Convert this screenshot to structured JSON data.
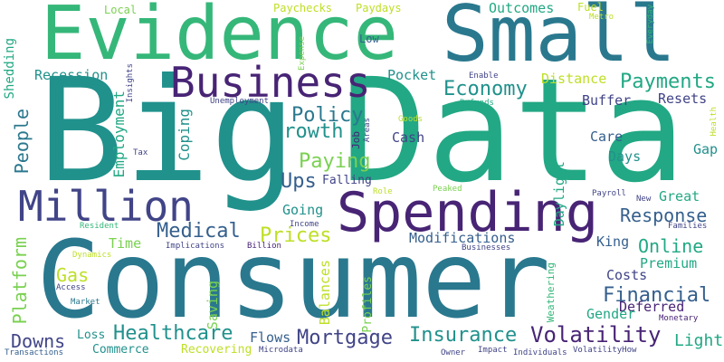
{
  "palette": {
    "yellow": "#bddf26",
    "light_green": "#7ad151",
    "green": "#35b779",
    "teal_green": "#22a884",
    "teal": "#21918c",
    "blue_teal": "#2a788e",
    "blue": "#355f8d",
    "indigo": "#414487",
    "purple": "#482475"
  },
  "words": {
    "big": "Big",
    "data": "Data",
    "consumer": "Consumer",
    "evidence": "Evidence",
    "small": "Small",
    "spending": "Spending",
    "business": "Business",
    "million": "Million",
    "economy": "Economy",
    "payments": "Payments",
    "policy": "Policy",
    "growth": "Growth",
    "paying": "Paying",
    "ups": "Ups",
    "medical": "Medical",
    "prices": "Prices",
    "healthcare": "Healthcare",
    "mortgage": "Mortgage",
    "insurance": "Insurance",
    "volatility": "Volatility",
    "financial": "Financial",
    "response": "Response",
    "online": "Online",
    "premium": "Premium",
    "costs": "Costs",
    "deferred": "Deferred",
    "gender": "Gender",
    "light": "Light",
    "downs": "Downs",
    "gas": "Gas",
    "platform": "Platform",
    "people": "People",
    "employment": "Employment",
    "coping": "Coping",
    "recession": "Recession",
    "shedding": "Shedding",
    "outcomes": "Outcomes",
    "pocket": "Pocket",
    "distance": "Distance",
    "buffer": "Buffer",
    "resets": "Resets",
    "care": "Care",
    "days": "Days",
    "gap": "Gap",
    "great": "Great",
    "cash": "Cash",
    "daylight": "Daylight",
    "modifications": "Modifications",
    "king": "King",
    "time": "Time",
    "going": "Going",
    "falling": "Falling",
    "flows": "Flows",
    "balances": "Balances",
    "saving": "Saving",
    "recovering": "Recovering",
    "commerce": "Commerce",
    "loss": "Loss",
    "profiles": "Profiles",
    "weathering": "Weathering",
    "local": "Local",
    "paychecks": "Paychecks",
    "paydays": "Paydays",
    "fuel": "Fuel",
    "metro": "Metro",
    "everyday": "Everyday",
    "low": "Low",
    "expense": "Expense",
    "insights": "Insights",
    "unemployment": "Unemployment",
    "enable": "Enable",
    "refunds": "Refunds",
    "goods": "Goods",
    "areas": "Areas",
    "job": "Job",
    "tax": "Tax",
    "health": "Health",
    "role": "Role",
    "peaked": "Peaked",
    "payroll": "Payroll",
    "new": "New",
    "families": "Families",
    "income": "Income",
    "resident": "Resident",
    "implications": "Implications",
    "billion": "Billion",
    "dynamics": "Dynamics",
    "access": "Access",
    "market": "Market",
    "businesses": "Businesses",
    "monetary": "Monetary",
    "transactions": "Transactions",
    "microdata": "Microdata",
    "owner": "Owner",
    "impact": "Impact",
    "individuals": "Individuals",
    "volatility_how": "VolatilityHow"
  }
}
